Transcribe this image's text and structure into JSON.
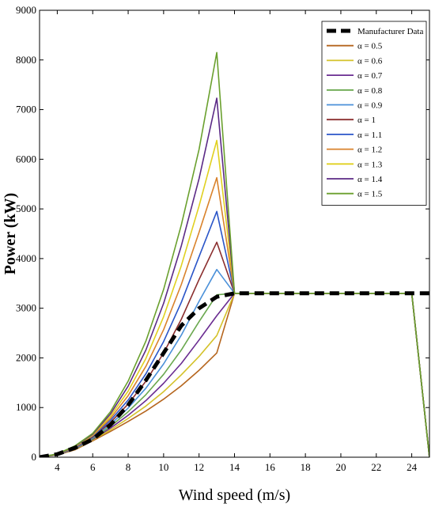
{
  "chart_data": {
    "type": "line",
    "title": "",
    "xlabel": "Wind speed (m/s)",
    "ylabel": "Power (kW)",
    "xlim": [
      3,
      25
    ],
    "ylim": [
      0,
      9000
    ],
    "xticks": [
      4,
      6,
      8,
      10,
      12,
      14,
      16,
      18,
      20,
      22,
      24
    ],
    "yticks": [
      0,
      1000,
      2000,
      3000,
      4000,
      5000,
      6000,
      7000,
      8000,
      9000
    ],
    "grid": false,
    "legend_position": "top-right",
    "x": [
      3,
      4,
      5,
      6,
      7,
      8,
      9,
      10,
      11,
      12,
      13,
      14,
      24,
      25
    ],
    "series": [
      {
        "name": "Manufacturer Data",
        "color": "#000000",
        "dashed": true,
        "values": [
          0,
          60,
          190,
          360,
          650,
          1050,
          1550,
          2100,
          2650,
          3000,
          3230,
          3300,
          3300,
          3300
        ]
      },
      {
        "name": "α = 0.5",
        "color": "#b5651d",
        "values": [
          0,
          45,
          150,
          330,
          520,
          720,
          930,
          1170,
          1440,
          1750,
          2100,
          3300,
          3300,
          0
        ]
      },
      {
        "name": "α = 0.6",
        "color": "#d4c22a",
        "values": [
          0,
          47,
          158,
          345,
          550,
          780,
          1030,
          1320,
          1660,
          2030,
          2450,
          3300,
          3300,
          0
        ]
      },
      {
        "name": "α = 0.7",
        "color": "#6a2c91",
        "values": [
          0,
          49,
          166,
          360,
          585,
          845,
          1140,
          1490,
          1890,
          2360,
          2850,
          3300,
          3300,
          0
        ]
      },
      {
        "name": "α = 0.8",
        "color": "#6aa84f",
        "values": [
          0,
          51,
          174,
          375,
          620,
          915,
          1260,
          1670,
          2160,
          2730,
          3270,
          3300,
          3300,
          0
        ]
      },
      {
        "name": "α = 0.9",
        "color": "#4a90d9",
        "values": [
          0,
          53,
          182,
          390,
          660,
          990,
          1390,
          1880,
          2460,
          3140,
          3780,
          3300,
          3300,
          0
        ]
      },
      {
        "name": "α = 1",
        "color": "#8b2e2e",
        "values": [
          0,
          55,
          190,
          405,
          700,
          1070,
          1530,
          2100,
          2780,
          3580,
          4330,
          3300,
          3300,
          0
        ]
      },
      {
        "name": "α = 1.1",
        "color": "#2a55c8",
        "values": [
          0,
          57,
          198,
          420,
          740,
          1150,
          1680,
          2330,
          3120,
          4040,
          4950,
          3300,
          3300,
          0
        ]
      },
      {
        "name": "α = 1.2",
        "color": "#d9822b",
        "values": [
          0,
          59,
          206,
          435,
          780,
          1240,
          1830,
          2570,
          3480,
          4530,
          5630,
          3300,
          3300,
          0
        ]
      },
      {
        "name": "α = 1.3",
        "color": "#e0d020",
        "values": [
          0,
          61,
          214,
          450,
          825,
          1330,
          1990,
          2830,
          3860,
          5060,
          6380,
          3300,
          3300,
          0
        ]
      },
      {
        "name": "α = 1.4",
        "color": "#5b2a86",
        "values": [
          0,
          63,
          222,
          465,
          870,
          1430,
          2160,
          3100,
          4260,
          5610,
          7230,
          3300,
          3300,
          0
        ]
      },
      {
        "name": "α = 1.5",
        "color": "#6aa02e",
        "values": [
          0,
          65,
          230,
          480,
          915,
          1530,
          2340,
          3380,
          4680,
          6200,
          8150,
          3300,
          3300,
          0
        ]
      }
    ]
  }
}
